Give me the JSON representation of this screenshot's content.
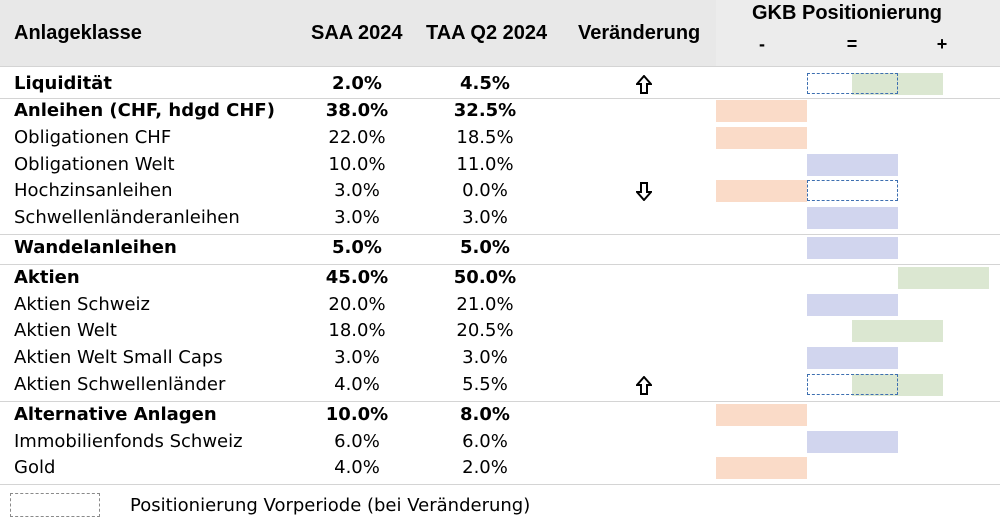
{
  "header": {
    "col_name": "Anlageklasse",
    "col_saa": "SAA 2024",
    "col_taa": "TAA Q2 2024",
    "col_change": "Veränderung",
    "col_position": "GKB Positionierung",
    "sign_minus": "-",
    "sign_neutral": "=",
    "sign_plus": "+"
  },
  "colors": {
    "minus": "#fadbc8",
    "neutral": "#d1d5ee",
    "plus": "#dbe7d1",
    "previous_border": "#3d6fb0"
  },
  "rows": [
    {
      "name": "Liquidität",
      "saa": "2.0%",
      "taa": "4.5%",
      "change": "up-arrow-icon",
      "bold": true,
      "position": "+",
      "previous": "="
    },
    {
      "name": "Anleihen (CHF, hdgd CHF)",
      "saa": "38.0%",
      "taa": "32.5%",
      "change": "",
      "bold": true,
      "position": "-",
      "previous": ""
    },
    {
      "name": "Obligationen CHF",
      "saa": "22.0%",
      "taa": "18.5%",
      "change": "",
      "bold": false,
      "position": "-",
      "previous": ""
    },
    {
      "name": "Obligationen Welt",
      "saa": "10.0%",
      "taa": "11.0%",
      "change": "",
      "bold": false,
      "position": "=",
      "previous": ""
    },
    {
      "name": "Hochzinsanleihen",
      "saa": "3.0%",
      "taa": "0.0%",
      "change": "down-arrow-icon",
      "bold": false,
      "position": "-",
      "previous": "="
    },
    {
      "name": "Schwellenländeranleihen",
      "saa": "3.0%",
      "taa": "3.0%",
      "change": "",
      "bold": false,
      "position": "=",
      "previous": ""
    },
    {
      "name": "Wandelanleihen",
      "saa": "5.0%",
      "taa": "5.0%",
      "change": "",
      "bold": true,
      "position": "=",
      "previous": ""
    },
    {
      "name": "Aktien",
      "saa": "45.0%",
      "taa": "50.0%",
      "change": "",
      "bold": true,
      "position": "++",
      "previous": ""
    },
    {
      "name": "Aktien Schweiz",
      "saa": "20.0%",
      "taa": "21.0%",
      "change": "",
      "bold": false,
      "position": "=",
      "previous": ""
    },
    {
      "name": "Aktien Welt",
      "saa": "18.0%",
      "taa": "20.5%",
      "change": "",
      "bold": false,
      "position": "+",
      "previous": ""
    },
    {
      "name": "Aktien Welt Small Caps",
      "saa": "3.0%",
      "taa": "3.0%",
      "change": "",
      "bold": false,
      "position": "=",
      "previous": ""
    },
    {
      "name": "Aktien Schwellenländer",
      "saa": "4.0%",
      "taa": "5.5%",
      "change": "up-arrow-icon",
      "bold": false,
      "position": "+",
      "previous": "="
    },
    {
      "name": "Alternative Anlagen",
      "saa": "10.0%",
      "taa": "8.0%",
      "change": "",
      "bold": true,
      "position": "-",
      "previous": ""
    },
    {
      "name": "Immobilienfonds Schweiz",
      "saa": "6.0%",
      "taa": "6.0%",
      "change": "",
      "bold": false,
      "position": "=",
      "previous": ""
    },
    {
      "name": "Gold",
      "saa": "4.0%",
      "taa": "2.0%",
      "change": "",
      "bold": false,
      "position": "-",
      "previous": ""
    }
  ],
  "legend": {
    "text": "Positionierung Vorperiode (bei Veränderung)"
  }
}
